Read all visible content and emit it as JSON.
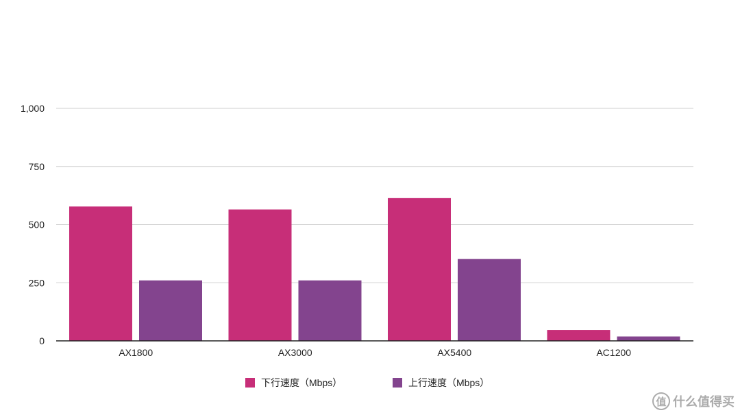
{
  "chart_data": {
    "type": "bar",
    "categories": [
      "AX1800",
      "AX3000",
      "AX5400",
      "AC1200"
    ],
    "series": [
      {
        "name": "下行速度（Mbps）",
        "color": "#c72e78",
        "values": [
          578,
          565,
          614,
          47
        ]
      },
      {
        "name": "上行速度（Mbps）",
        "color": "#83448e",
        "values": [
          260,
          260,
          352,
          19
        ]
      }
    ],
    "title": "",
    "xlabel": "",
    "ylabel": "",
    "ylim": [
      0,
      1000
    ],
    "yticks": [
      0,
      250,
      500,
      750,
      1000
    ],
    "ytick_labels": [
      "0",
      "250",
      "500",
      "750",
      "1,000"
    ],
    "grid": true,
    "legend_position": "bottom"
  },
  "watermark": {
    "logo": "值",
    "text": "什么值得买"
  }
}
